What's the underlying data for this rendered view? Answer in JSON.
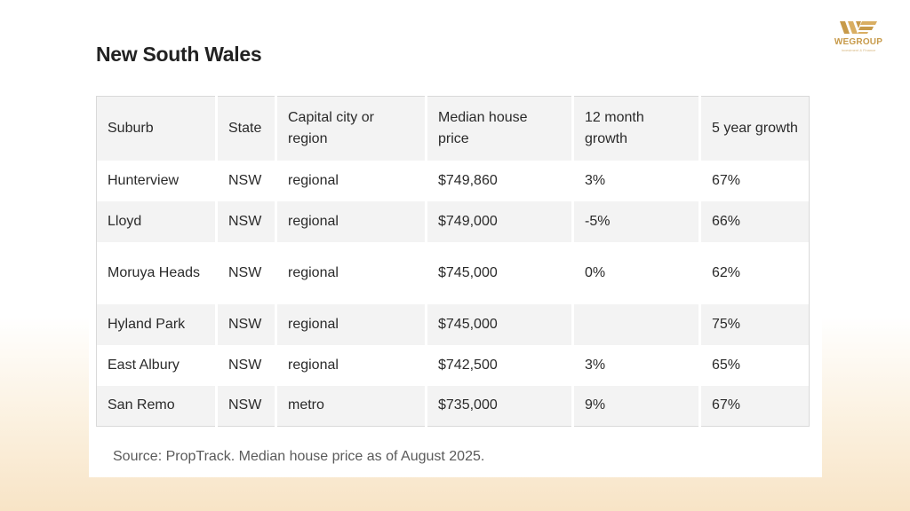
{
  "page": {
    "title": "New South Wales"
  },
  "logo": {
    "brand": "WEGROUP",
    "tagline": "Investment & Finance",
    "icon": "wegroup-logo-icon"
  },
  "table": {
    "headers": [
      "Suburb",
      "State",
      "Capital city or region",
      "Median house price",
      "12 month growth",
      "5 year growth"
    ],
    "rows": [
      [
        "Hunterview",
        "NSW",
        "regional",
        "$749,860",
        "3%",
        "67%"
      ],
      [
        "Lloyd",
        "NSW",
        "regional",
        "$749,000",
        "-5%",
        "66%"
      ],
      [
        "Moruya Heads",
        "NSW",
        "regional",
        "$745,000",
        "0%",
        "62%"
      ],
      [
        "Hyland Park",
        "NSW",
        "regional",
        "$745,000",
        "",
        "75%"
      ],
      [
        "East Albury",
        "NSW",
        "regional",
        "$742,500",
        "3%",
        "65%"
      ],
      [
        "San Remo",
        "NSW",
        "metro",
        "$735,000",
        "9%",
        "67%"
      ]
    ]
  },
  "source": "Source: PropTrack. Median house price as of August 2025.",
  "colors": {
    "accent": "#c79a4a",
    "row_stripe": "#f3f3f3"
  }
}
